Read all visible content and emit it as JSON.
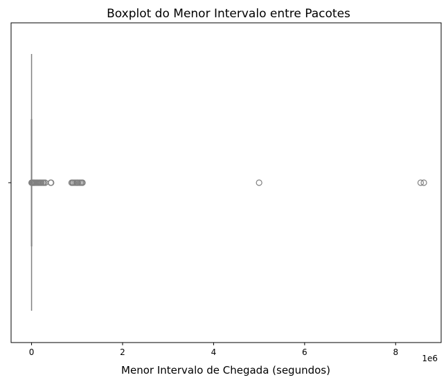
{
  "chart_data": {
    "type": "boxplot",
    "orientation": "horizontal",
    "title": "Boxplot do Menor Intervalo entre Pacotes",
    "xlabel": "Menor Intervalo de Chegada (segundos)",
    "ylabel": "",
    "x_scale_label": "1e6",
    "xlim": [
      -0.45,
      9.0
    ],
    "x_unit_multiplier": 1000000,
    "xticks": [
      0,
      2,
      4,
      6,
      8
    ],
    "xtick_labels": [
      "0",
      "2",
      "4",
      "6",
      "8"
    ],
    "ytick_labels": [
      ""
    ],
    "box": {
      "min": 0,
      "q1": 0,
      "median": 0,
      "q3": 0,
      "max": 0,
      "color": "#808080"
    },
    "outliers": [
      0.0,
      0.01,
      0.02,
      0.03,
      0.04,
      0.05,
      0.06,
      0.08,
      0.1,
      0.12,
      0.14,
      0.16,
      0.18,
      0.2,
      0.22,
      0.25,
      0.27,
      0.3,
      0.42,
      0.43,
      0.88,
      0.9,
      0.92,
      0.95,
      0.98,
      1.0,
      1.02,
      1.05,
      1.08,
      1.1,
      1.12,
      5.0,
      8.55,
      8.62
    ],
    "grid": false
  }
}
